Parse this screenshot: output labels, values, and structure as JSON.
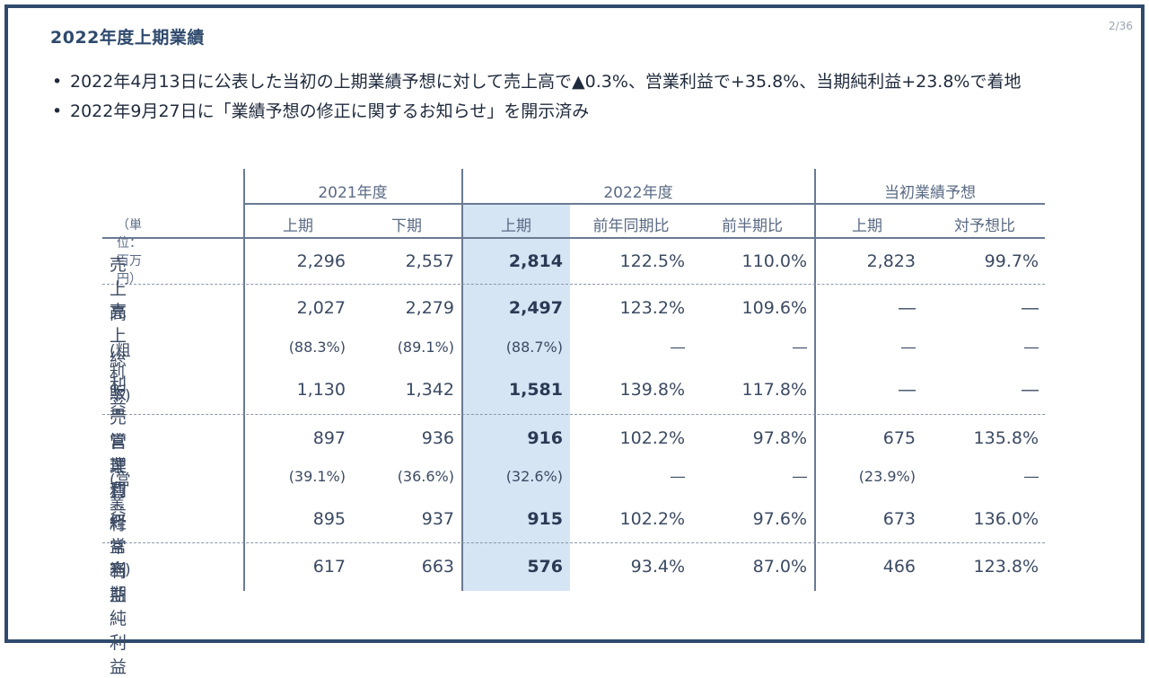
{
  "slide": {
    "title": "2022年度上期業績",
    "page": "2/36"
  },
  "bullets": [
    "2022年4月13日に公表した当初の上期業績予想に対して売上高で▲0.3%、営業利益で+35.8%、当期純利益+23.8%で着地",
    "2022年9月27日に「業績予想の修正に関するお知らせ」を開示済み"
  ],
  "bullet_marker": "•",
  "table": {
    "unit_label": "（単位：百万円）",
    "groups": [
      "2021年度",
      "2022年度",
      "当初業績予想"
    ],
    "columns": [
      "上期",
      "下期",
      "上期",
      "前年同期比",
      "前半期比",
      "上期",
      "対予想比"
    ],
    "rows": [
      {
        "label": "売上高",
        "values": [
          "2,296",
          "2,557",
          "2,814",
          "122.5%",
          "110.0%",
          "2,823",
          "99.7%"
        ]
      },
      {
        "label": "売上総利益",
        "values": [
          "2,027",
          "2,279",
          "2,497",
          "123.2%",
          "109.6%",
          "―",
          "―"
        ]
      },
      {
        "label": "(粗利率)",
        "values": [
          "(88.3%)",
          "(89.1%)",
          "(88.7%)",
          "―",
          "―",
          "―",
          "―"
        ]
      },
      {
        "label": "販売管理費",
        "values": [
          "1,130",
          "1,342",
          "1,581",
          "139.8%",
          "117.8%",
          "―",
          "―"
        ]
      },
      {
        "label": "営業利益",
        "values": [
          "897",
          "936",
          "916",
          "102.2%",
          "97.8%",
          "675",
          "135.8%"
        ]
      },
      {
        "label": "(営業利益率)",
        "values": [
          "(39.1%)",
          "(36.6%)",
          "(32.6%)",
          "―",
          "―",
          "(23.9%)",
          "―"
        ]
      },
      {
        "label": "経常利益",
        "values": [
          "895",
          "937",
          "915",
          "102.2%",
          "97.6%",
          "673",
          "136.0%"
        ]
      },
      {
        "label": "当期純利益",
        "values": [
          "617",
          "663",
          "576",
          "93.4%",
          "87.0%",
          "466",
          "123.8%"
        ]
      }
    ]
  }
}
